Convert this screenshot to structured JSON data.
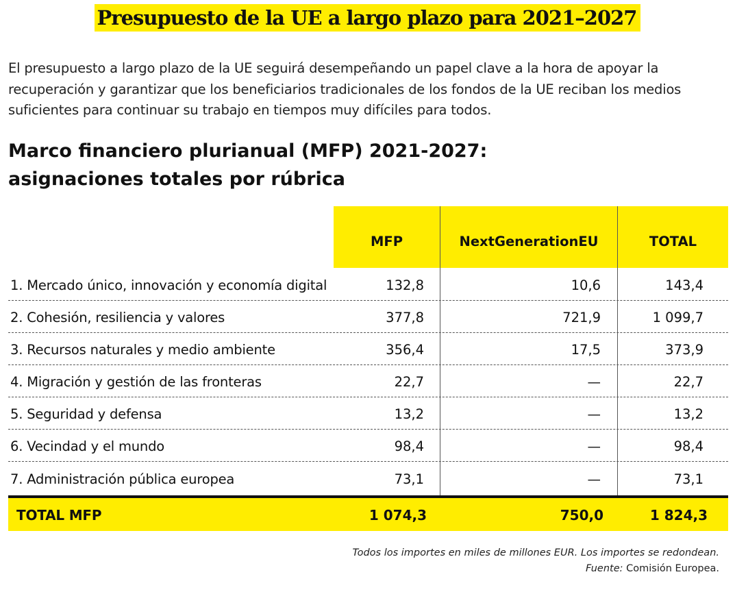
{
  "title": "Presupuesto de la UE a largo plazo para 2021–2027",
  "intro": "El presupuesto a largo plazo de la UE seguirá desempeñando un papel clave a la hora de apoyar la recuperación y garantizar que los beneficiarios tradicionales de los fondos de la UE reciban los medios suficientes para continuar su trabajo en tiempos muy difíciles para todos.",
  "heading": {
    "line1": "Marco financiero plurianual (MFP) 2021-2027:",
    "line2": "asignaciones totales por rúbrica"
  },
  "table": {
    "headers": [
      "MFP",
      "NextGenerationEU",
      "TOTAL"
    ],
    "rows": [
      {
        "label": "1. Mercado único, innovación y economía digital",
        "mfp": "132,8",
        "ngeu": "10,6",
        "total": "143,4"
      },
      {
        "label": "2. Cohesión, resiliencia y valores",
        "mfp": "377,8",
        "ngeu": "721,9",
        "total": "1 099,7"
      },
      {
        "label": "3. Recursos naturales y medio ambiente",
        "mfp": "356,4",
        "ngeu": "17,5",
        "total": "373,9"
      },
      {
        "label": "4. Migración y gestión de las fronteras",
        "mfp": "22,7",
        "ngeu": "—",
        "total": "22,7"
      },
      {
        "label": "5. Seguridad y defensa",
        "mfp": "13,2",
        "ngeu": "—",
        "total": "13,2"
      },
      {
        "label": "6. Vecindad y el mundo",
        "mfp": "98,4",
        "ngeu": "—",
        "total": "98,4"
      },
      {
        "label": "7. Administración pública europea",
        "mfp": "73,1",
        "ngeu": "—",
        "total": "73,1"
      }
    ],
    "total_row": {
      "label": "TOTAL MFP",
      "mfp": "1 074,3",
      "ngeu": "750,0",
      "total": "1 824,3"
    }
  },
  "footnote": {
    "line1": "Todos los importes en miles de millones EUR. Los importes se redondean.",
    "source_label": "Fuente:",
    "source_value": " Comisión Europea."
  },
  "colors": {
    "accent_yellow": "#ffed00",
    "text": "#111111"
  }
}
